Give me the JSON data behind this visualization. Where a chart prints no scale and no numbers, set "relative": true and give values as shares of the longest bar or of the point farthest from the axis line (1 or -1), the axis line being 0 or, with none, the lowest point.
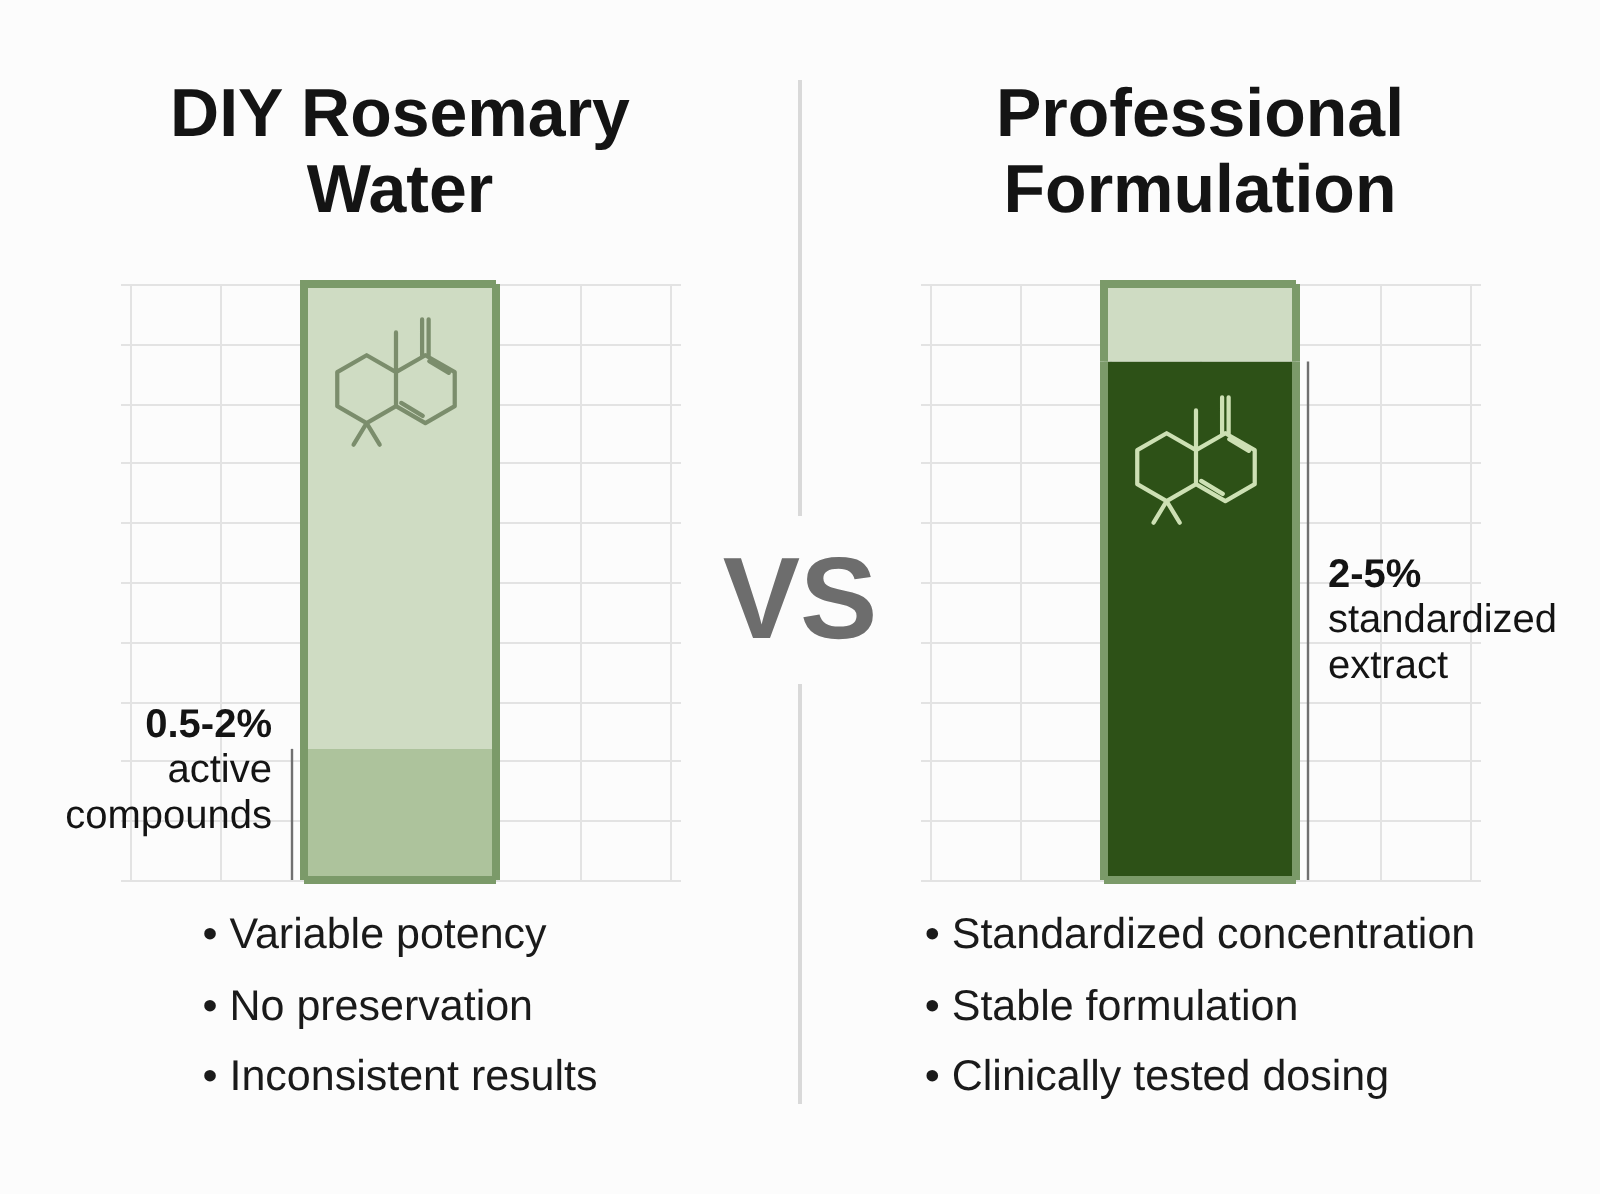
{
  "chart_data": [
    {
      "type": "bar",
      "title": "DIY Rosemary Water",
      "categories": [
        null
      ],
      "series": [
        {
          "color": "#adc39c",
          "values": [
            0.22
          ]
        },
        {
          "color": "#cfdcc3",
          "values": [
            0.78
          ]
        }
      ],
      "stacked": true,
      "relative": true,
      "grid": true,
      "annotations": [
        "0.5-2% active compounds",
        "• Variable potency",
        "• No preservation",
        "• Inconsistent results"
      ]
    },
    {
      "type": "other",
      "annotations": [
        "VS"
      ]
    },
    {
      "type": "bar",
      "title": "Professional Formulation",
      "categories": [
        null
      ],
      "series": [
        {
          "color": "#2d5117",
          "values": [
            0.87
          ]
        },
        {
          "color": "#cfdcc3",
          "values": [
            0.13
          ]
        }
      ],
      "stacked": true,
      "relative": true,
      "grid": true,
      "annotations": [
        "2-5% standardized extract",
        "• Standardized concentration",
        "• Stable formulation",
        "• Clinically tested dosing"
      ]
    }
  ]
}
